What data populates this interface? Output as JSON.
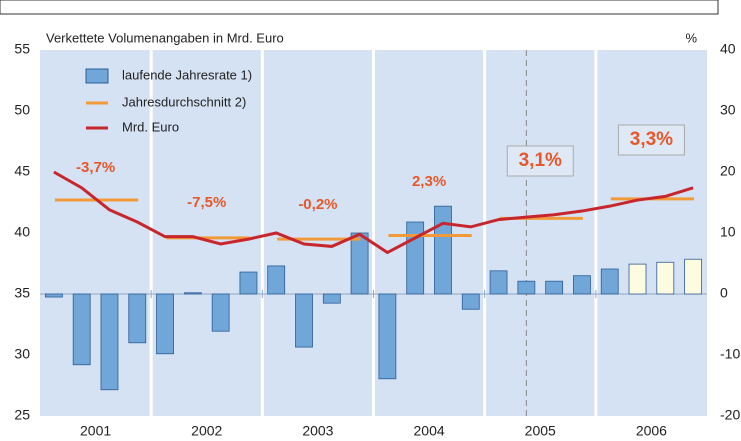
{
  "chart_data": {
    "type": "bar_line",
    "ylabel": "Verkettete Volumenangaben in Mrd. Euro",
    "y2label": "%",
    "years": [
      "2001",
      "2002",
      "2003",
      "2004",
      "2005",
      "2006"
    ],
    "ylim": [
      25,
      55
    ],
    "yticks": [
      25,
      30,
      35,
      40,
      45,
      50,
      55
    ],
    "y2lim": [
      -20,
      40
    ],
    "y2ticks": [
      -20,
      -10,
      0,
      10,
      20,
      30,
      40
    ],
    "forecast_start": 21,
    "series": [
      {
        "name": "laufende Jahresrate 1)",
        "kind": "bar",
        "axis": "y2",
        "color": "#70a6d8",
        "forecast_color": "#fdfbe0",
        "values": [
          -0.5,
          -11.6,
          -15.7,
          -8.0,
          -9.8,
          0.2,
          -6.1,
          3.6,
          4.6,
          -8.7,
          -1.5,
          10.0,
          -13.9,
          11.8,
          14.4,
          -2.5,
          3.8,
          2.1,
          2.1,
          3.0,
          4.1,
          4.9,
          5.2,
          5.7
        ]
      },
      {
        "name": "Jahresdurchschnitt 2)",
        "kind": "avg",
        "color": "#f29a38",
        "values": [
          42.7,
          39.6,
          39.5,
          39.8,
          41.2,
          42.8
        ]
      },
      {
        "name": "Mrd. Euro",
        "kind": "line",
        "color": "#c8262d",
        "values": [
          45.0,
          43.7,
          41.9,
          40.9,
          39.7,
          39.7,
          39.1,
          39.5,
          40.0,
          39.1,
          38.9,
          39.9,
          38.4,
          39.6,
          40.8,
          40.5,
          41.1,
          41.3,
          41.5,
          41.8,
          42.2,
          42.7,
          43.0,
          43.7
        ]
      }
    ],
    "annotations": [
      "-3,7%",
      "-7,5%",
      "-0,2%",
      "2,3%",
      "3,1%",
      "3,3%"
    ]
  }
}
